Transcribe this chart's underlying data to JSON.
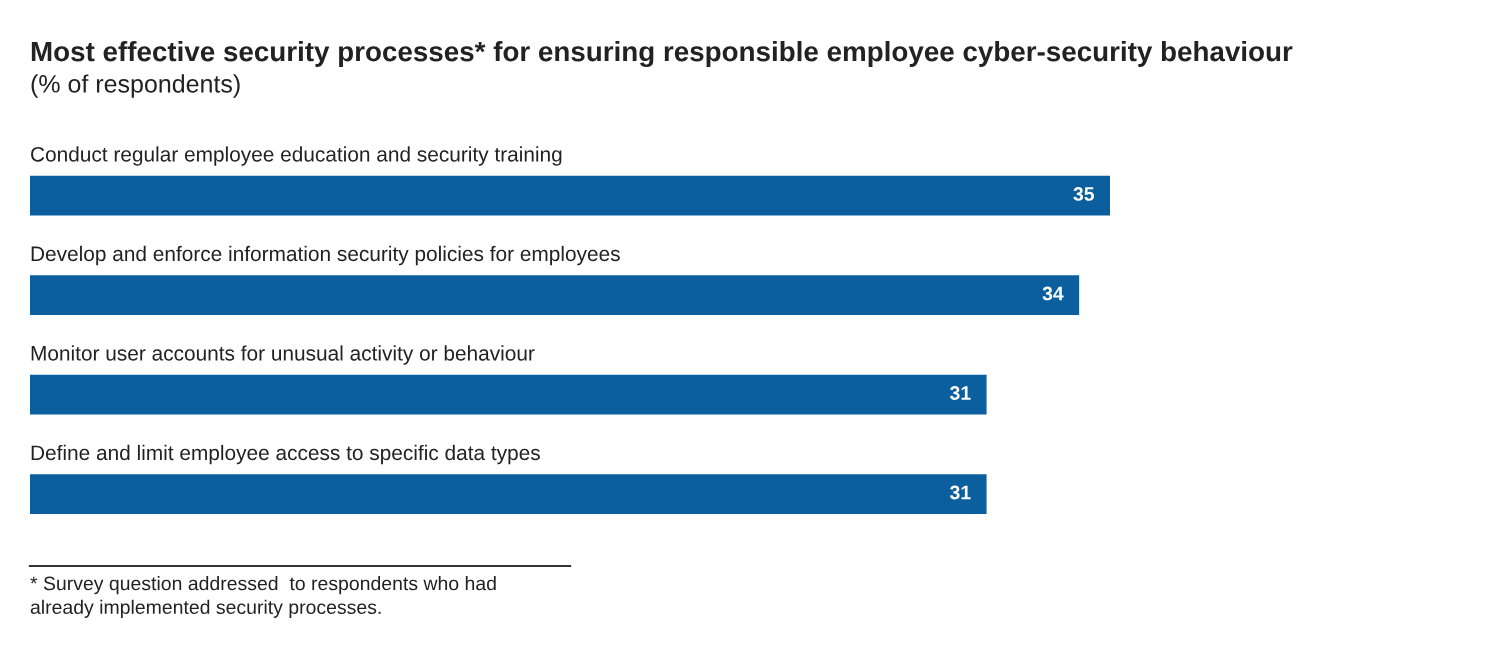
{
  "chart_data": {
    "type": "bar",
    "orientation": "horizontal",
    "title": "Most effective security processes* for ensuring responsible employee cyber-security behaviour",
    "subtitle": "(% of respondents)",
    "categories": [
      "Conduct regular employee education and security training",
      "Develop and enforce information security policies for employees",
      "Monitor user accounts for unusual activity or behaviour",
      "Define and limit employee access to specific data types"
    ],
    "values": [
      35,
      34,
      31,
      31
    ],
    "color": "#0b5f9e",
    "data_labels": true,
    "annotations": [
      "* Survey question addressed  to respondents who had\nalready implemented security processes."
    ]
  }
}
